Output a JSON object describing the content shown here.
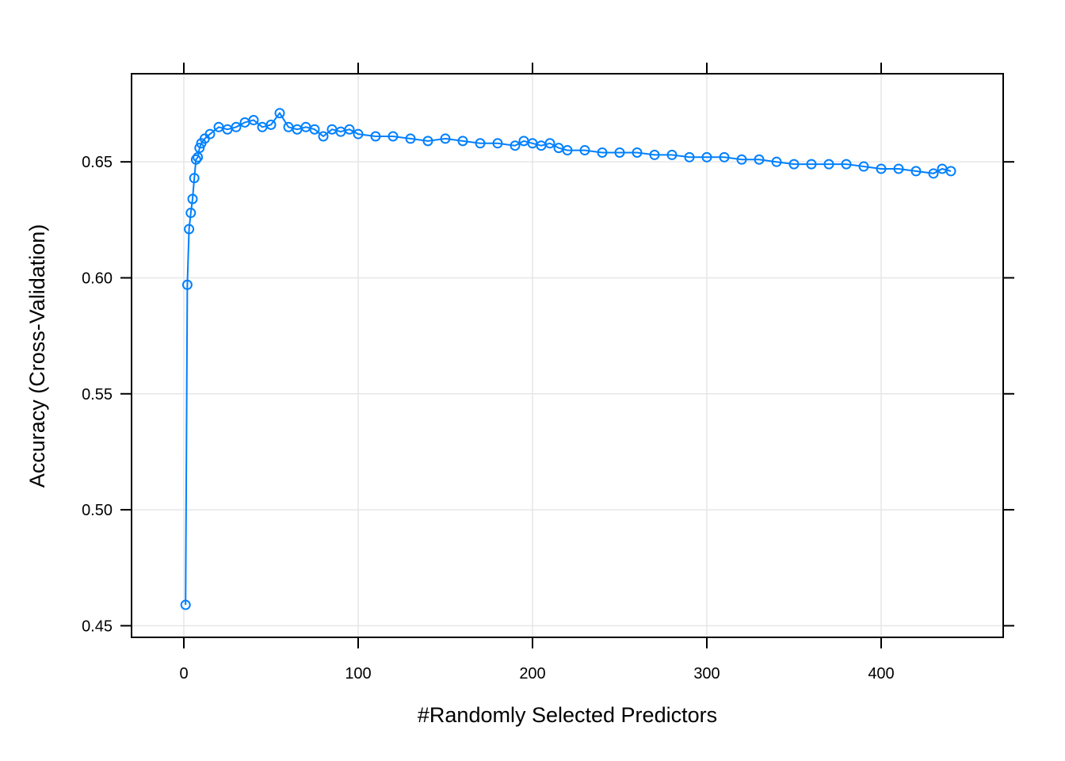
{
  "chart_data": {
    "type": "line",
    "xlabel": "#Randomly Selected Predictors",
    "ylabel": "Accuracy (Cross-Validation)",
    "xlim": [
      -30,
      470
    ],
    "ylim": [
      0.445,
      0.688
    ],
    "xticks": [
      0,
      100,
      200,
      300,
      400
    ],
    "yticks": [
      0.45,
      0.5,
      0.55,
      0.6,
      0.65
    ],
    "xtick_labels": [
      "0",
      "100",
      "200",
      "300",
      "400"
    ],
    "ytick_labels": [
      "0.45",
      "0.50",
      "0.55",
      "0.60",
      "0.65"
    ],
    "grid": true,
    "marker": "open-circle",
    "series_color": "#0080ff",
    "grid_color": "#e6e6e6",
    "series": [
      {
        "x": [
          1,
          2,
          3,
          4,
          5,
          6,
          7,
          8,
          9,
          10,
          12,
          15,
          20,
          25,
          30,
          35,
          40,
          45,
          50,
          55,
          60,
          65,
          70,
          75,
          80,
          85,
          90,
          95,
          100,
          110,
          120,
          130,
          140,
          150,
          160,
          170,
          180,
          190,
          195,
          200,
          205,
          210,
          215,
          220,
          230,
          240,
          250,
          260,
          270,
          280,
          290,
          300,
          310,
          320,
          330,
          340,
          350,
          360,
          370,
          380,
          390,
          400,
          410,
          420,
          430,
          435,
          440
        ],
        "values": [
          0.459,
          0.597,
          0.621,
          0.628,
          0.634,
          0.643,
          0.651,
          0.652,
          0.656,
          0.658,
          0.66,
          0.662,
          0.665,
          0.664,
          0.665,
          0.667,
          0.668,
          0.665,
          0.666,
          0.671,
          0.665,
          0.664,
          0.665,
          0.664,
          0.661,
          0.664,
          0.663,
          0.664,
          0.662,
          0.661,
          0.661,
          0.66,
          0.659,
          0.66,
          0.659,
          0.658,
          0.658,
          0.657,
          0.659,
          0.658,
          0.657,
          0.658,
          0.656,
          0.655,
          0.655,
          0.654,
          0.654,
          0.654,
          0.653,
          0.653,
          0.652,
          0.652,
          0.652,
          0.651,
          0.651,
          0.65,
          0.649,
          0.649,
          0.649,
          0.649,
          0.648,
          0.647,
          0.647,
          0.646,
          0.645,
          0.647,
          0.646
        ]
      }
    ]
  }
}
